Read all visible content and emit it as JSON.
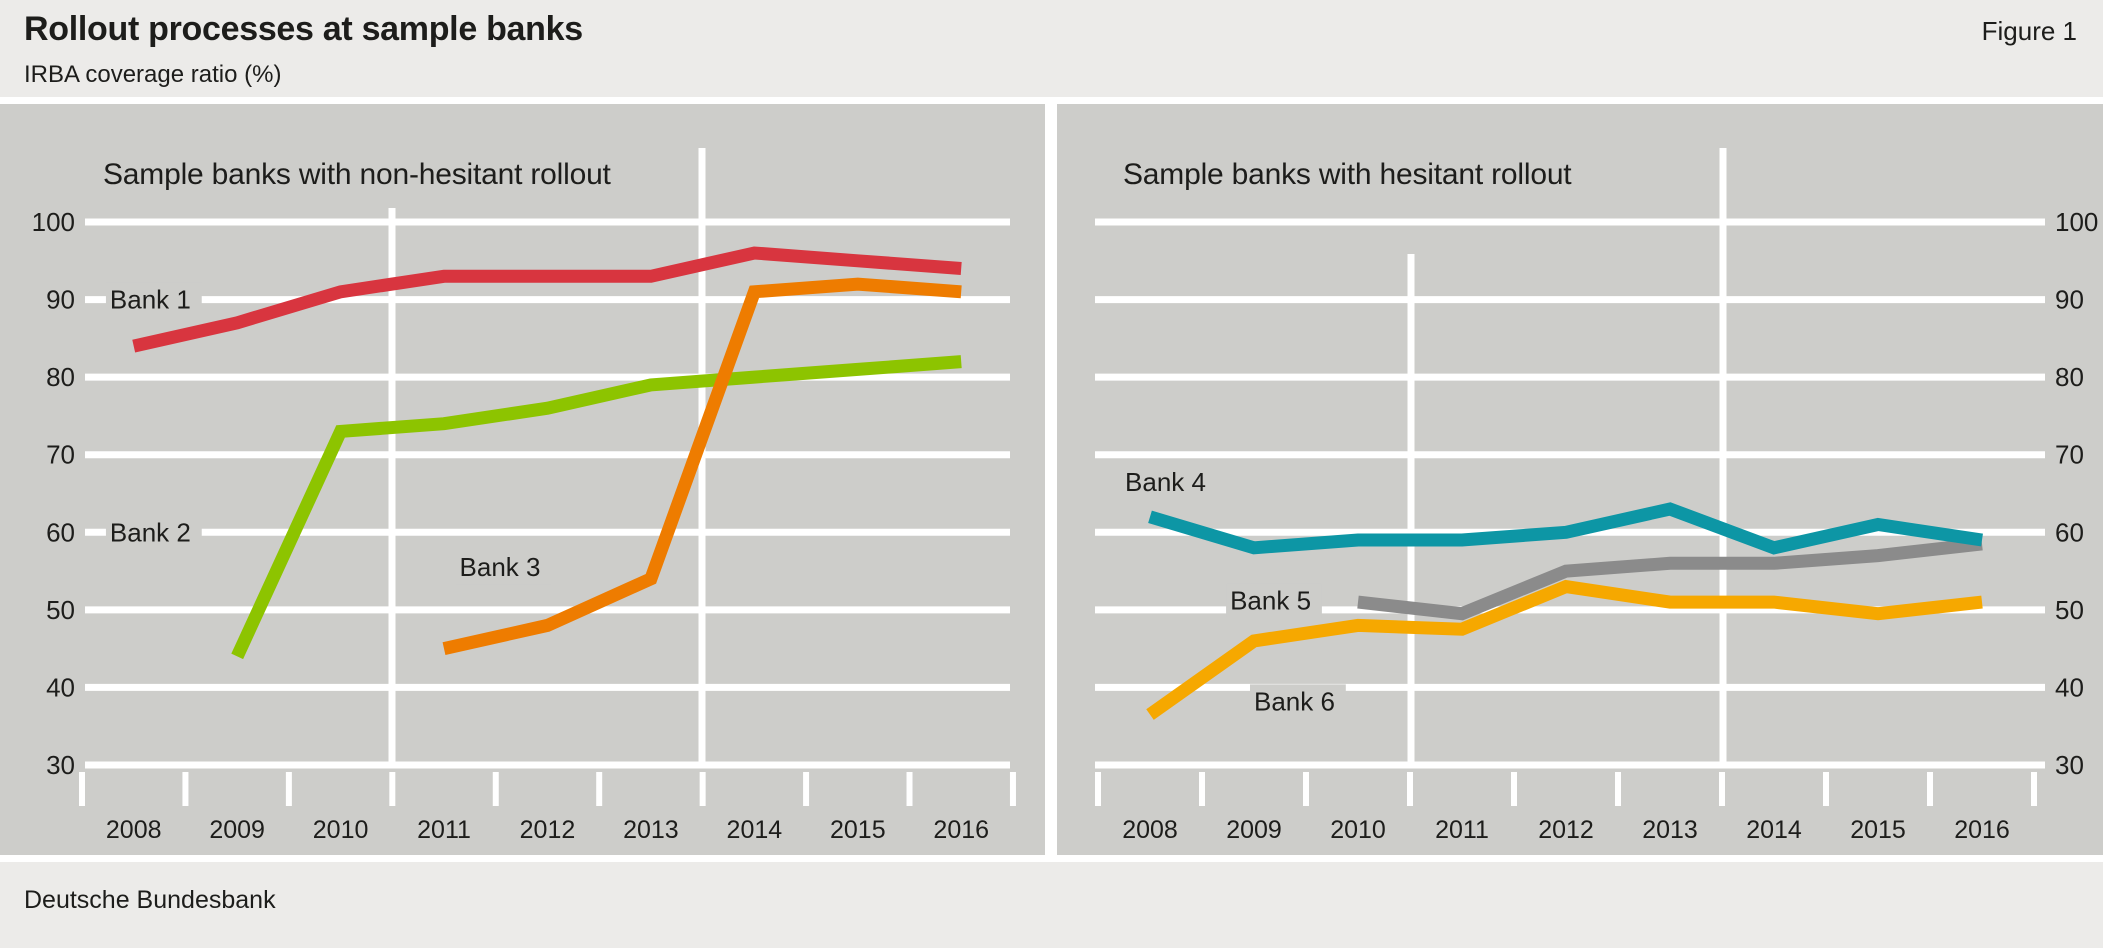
{
  "header": {
    "title": "Rollout processes at sample banks",
    "figure_label": "Figure 1",
    "subtitle": "IRBA coverage ratio (%)"
  },
  "footer": {
    "source": "Deutsche Bundesbank"
  },
  "palette": {
    "red": "#d8353f",
    "green": "#8dc400",
    "orange": "#ee7c00",
    "teal": "#0d96a5",
    "gray": "#8b8b8b",
    "amber": "#f6a800",
    "plot_background": "#cdcdca",
    "band_background": "#ecebe9",
    "grid": "#ffffff",
    "text": "#1d1d1b"
  },
  "chart_data": [
    {
      "type": "line",
      "title": "Sample banks with non-hesitant rollout",
      "y_axis_side": "left",
      "categories": [
        2008,
        2009,
        2010,
        2011,
        2012,
        2013,
        2014,
        2015,
        2016
      ],
      "ylim": [
        30,
        100
      ],
      "yticks": [
        100,
        90,
        80,
        70,
        60,
        50,
        40,
        30
      ],
      "grid": true,
      "series": [
        {
          "name": "Bank 1",
          "color": "red",
          "values": [
            84,
            87,
            91,
            93,
            93,
            93,
            96,
            95,
            94
          ]
        },
        {
          "name": "Bank 2",
          "color": "green",
          "values": [
            null,
            44,
            73,
            74,
            76,
            79,
            80,
            81,
            82
          ]
        },
        {
          "name": "Bank 3",
          "color": "orange",
          "values": [
            null,
            null,
            null,
            45,
            48,
            54,
            91,
            92,
            91
          ]
        }
      ],
      "annotations": [
        {
          "text": "Bank 1",
          "year": 2007.77,
          "value": 90
        },
        {
          "text": "Bank 2",
          "year": 2007.77,
          "value": 60
        },
        {
          "text": "Bank 3",
          "year": 2011.15,
          "value": 55.5
        }
      ]
    },
    {
      "type": "line",
      "title": "Sample banks with hesitant rollout",
      "y_axis_side": "right",
      "categories": [
        2008,
        2009,
        2010,
        2011,
        2012,
        2013,
        2014,
        2015,
        2016
      ],
      "ylim": [
        30,
        100
      ],
      "yticks": [
        100,
        90,
        80,
        70,
        60,
        50,
        40,
        30
      ],
      "grid": true,
      "series": [
        {
          "name": "Bank 6",
          "color": "amber",
          "values": [
            36.5,
            46,
            48,
            47.5,
            53,
            51,
            51,
            49.5,
            51
          ]
        },
        {
          "name": "Bank 5",
          "color": "gray",
          "values": [
            null,
            null,
            51,
            49.5,
            55,
            56,
            56,
            57,
            58.5
          ]
        },
        {
          "name": "Bank 4",
          "color": "teal",
          "values": [
            62,
            58,
            59,
            59,
            60,
            63,
            58,
            61,
            59
          ]
        }
      ],
      "annotations": [
        {
          "text": "Bank 4",
          "year": 2007.76,
          "value": 66.5
        },
        {
          "text": "Bank 5",
          "year": 2008.77,
          "value": 51.2
        },
        {
          "text": "Bank 6",
          "year": 2009.0,
          "value": 38.2
        }
      ]
    }
  ]
}
